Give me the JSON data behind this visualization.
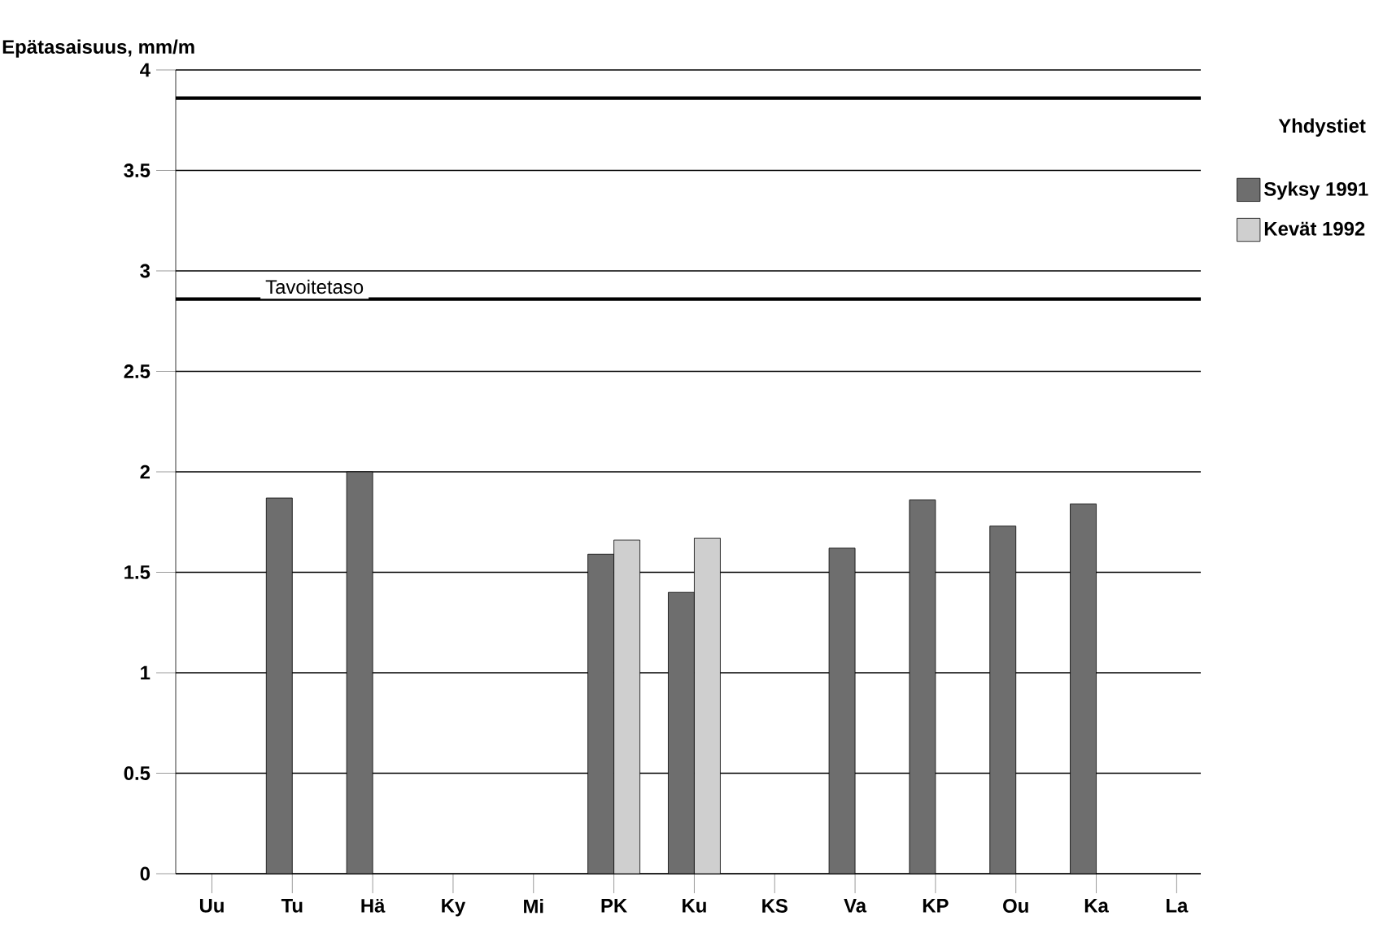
{
  "chart_data": {
    "type": "bar",
    "ylabel": "Epätasaisuus, mm/m",
    "legend_title": "Yhdystiet",
    "categories": [
      "Uu",
      "Tu",
      "Hä",
      "Ky",
      "Mi",
      "PK",
      "Ku",
      "KS",
      "Va",
      "KP",
      "Ou",
      "Ka",
      "La"
    ],
    "series": [
      {
        "name": "Syksy 1991",
        "color": "#6e6e6e",
        "values": [
          null,
          1.87,
          2.0,
          null,
          null,
          1.59,
          1.4,
          null,
          1.62,
          1.86,
          1.73,
          1.84,
          null
        ]
      },
      {
        "name": "Kevät 1992",
        "color": "#cfcfcf",
        "values": [
          null,
          null,
          null,
          null,
          null,
          1.66,
          1.67,
          null,
          null,
          null,
          null,
          null,
          null
        ]
      }
    ],
    "ylim": [
      0,
      4
    ],
    "yticks": [
      0,
      0.5,
      1,
      1.5,
      2,
      2.5,
      3,
      3.5,
      4
    ],
    "grid": "y",
    "legend": "top right",
    "ref_lines": [
      {
        "axis": "y",
        "value": 3.86
      },
      {
        "axis": "y",
        "value": 2.86,
        "label": "Tavoitetaso"
      }
    ]
  }
}
